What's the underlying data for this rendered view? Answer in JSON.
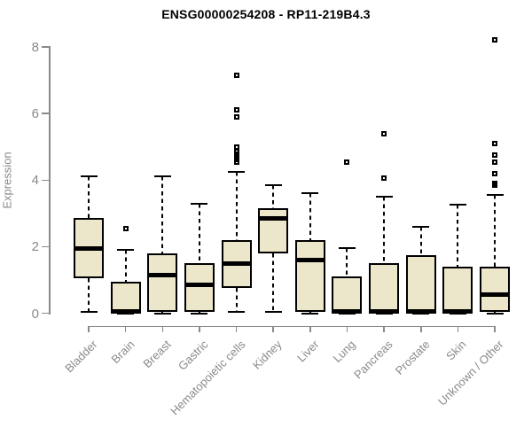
{
  "title": "ENSG00000254208 - RP11-219B4.3",
  "colors": {
    "box_fill": "#ece6cb",
    "box_border": "#000000",
    "median": "#000000",
    "whisker": "#000000",
    "outlier": "#000000",
    "axis": "#8a8a8a",
    "tick_label": "#8a8a8a",
    "title": "#000000",
    "background": "#ffffff"
  },
  "chart_data": {
    "type": "boxplot",
    "title": "ENSG00000254208 - RP11-219B4.3",
    "xlabel": "",
    "ylabel": "Expression",
    "ylim": [
      0,
      8
    ],
    "yticks": [
      0,
      2,
      4,
      6,
      8
    ],
    "grid": false,
    "legend": "none",
    "categories": [
      "Bladder",
      "Brain",
      "Breast",
      "Gastric",
      "Hematopoietic cells",
      "Kidney",
      "Liver",
      "Lung",
      "Pancreas",
      "Prostate",
      "Skin",
      "Unknown / Other"
    ],
    "series": [
      {
        "name": "Bladder",
        "whisker_low": 0.05,
        "q1": 1.05,
        "median": 1.95,
        "q3": 2.85,
        "whisker_high": 4.1,
        "outliers": []
      },
      {
        "name": "Brain",
        "whisker_low": 0,
        "q1": 0,
        "median": 0.05,
        "q3": 0.95,
        "whisker_high": 1.9,
        "outliers": [
          2.55
        ]
      },
      {
        "name": "Breast",
        "whisker_low": 0,
        "q1": 0.03,
        "median": 1.15,
        "q3": 1.8,
        "whisker_high": 4.1,
        "outliers": []
      },
      {
        "name": "Gastric",
        "whisker_low": 0,
        "q1": 0.03,
        "median": 0.85,
        "q3": 1.5,
        "whisker_high": 3.3,
        "outliers": []
      },
      {
        "name": "Hematopoietic cells",
        "whisker_low": 0.05,
        "q1": 0.75,
        "median": 1.5,
        "q3": 2.2,
        "whisker_high": 4.25,
        "outliers": [
          7.15,
          6.1,
          5.9,
          5.0,
          4.85,
          4.78,
          4.7,
          4.62,
          4.55
        ]
      },
      {
        "name": "Kidney",
        "whisker_low": 0.05,
        "q1": 1.8,
        "median": 2.85,
        "q3": 3.15,
        "whisker_high": 3.85,
        "outliers": []
      },
      {
        "name": "Liver",
        "whisker_low": 0,
        "q1": 0.05,
        "median": 1.6,
        "q3": 2.2,
        "whisker_high": 3.6,
        "outliers": []
      },
      {
        "name": "Lung",
        "whisker_low": 0,
        "q1": 0,
        "median": 0.05,
        "q3": 1.1,
        "whisker_high": 1.95,
        "outliers": [
          4.55
        ]
      },
      {
        "name": "Pancreas",
        "whisker_low": 0,
        "q1": 0,
        "median": 0.05,
        "q3": 1.5,
        "whisker_high": 3.5,
        "outliers": [
          5.4,
          4.05
        ]
      },
      {
        "name": "Prostate",
        "whisker_low": 0,
        "q1": 0,
        "median": 0.05,
        "q3": 1.75,
        "whisker_high": 2.6,
        "outliers": []
      },
      {
        "name": "Skin",
        "whisker_low": 0,
        "q1": 0,
        "median": 0.05,
        "q3": 1.4,
        "whisker_high": 3.25,
        "outliers": []
      },
      {
        "name": "Unknown / Other",
        "whisker_low": 0,
        "q1": 0.03,
        "median": 0.55,
        "q3": 1.4,
        "whisker_high": 3.55,
        "outliers": [
          8.2,
          5.1,
          4.75,
          4.55,
          4.2,
          3.9,
          3.85
        ]
      }
    ]
  }
}
